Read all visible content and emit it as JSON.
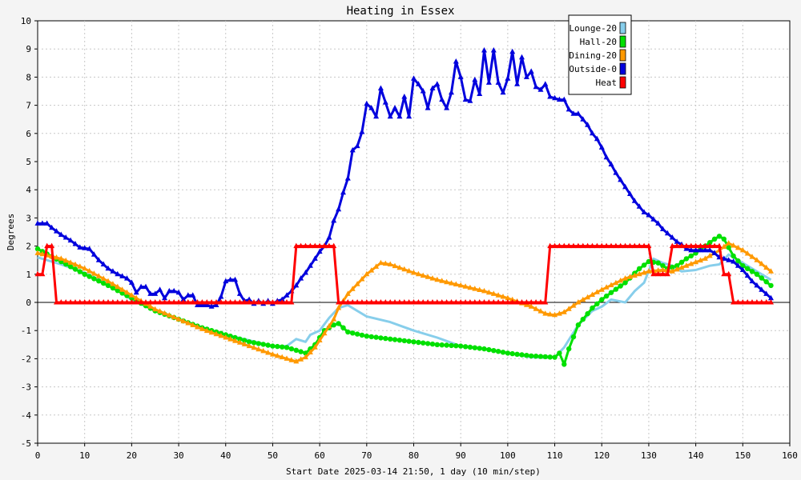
{
  "chart_data": {
    "type": "line",
    "title": "Heating in Essex",
    "xlabel": "Start Date 2025-03-14 21:50, 1 day (10 min/step)",
    "ylabel": "Degrees",
    "xlim": [
      0,
      160
    ],
    "ylim": [
      -5,
      10
    ],
    "xticks": [
      0,
      10,
      20,
      30,
      40,
      50,
      60,
      70,
      80,
      90,
      100,
      110,
      120,
      130,
      140,
      150,
      160
    ],
    "yticks": [
      -5,
      -4,
      -3,
      -2,
      -1,
      0,
      1,
      2,
      3,
      4,
      5,
      6,
      7,
      8,
      9,
      10
    ],
    "grid": true,
    "legend_position": "top-right",
    "background": "#f4f4f4",
    "plot_background": "#ffffff",
    "grid_color": "#c8c8c8",
    "series": [
      {
        "name": "Lounge-20",
        "color": "#87ceeb",
        "marker": "none",
        "points": [
          [
            0,
            1.6
          ],
          [
            5,
            1.35
          ],
          [
            10,
            1.05
          ],
          [
            15,
            0.65
          ],
          [
            20,
            0.1
          ],
          [
            25,
            -0.3
          ],
          [
            30,
            -0.6
          ],
          [
            35,
            -0.9
          ],
          [
            40,
            -1.15
          ],
          [
            45,
            -1.35
          ],
          [
            50,
            -1.55
          ],
          [
            53,
            -1.55
          ],
          [
            55,
            -1.3
          ],
          [
            57,
            -1.4
          ],
          [
            58,
            -1.15
          ],
          [
            60,
            -1.0
          ],
          [
            62,
            -0.55
          ],
          [
            64,
            -0.2
          ],
          [
            66,
            -0.1
          ],
          [
            68,
            -0.3
          ],
          [
            70,
            -0.5
          ],
          [
            75,
            -0.7
          ],
          [
            80,
            -1.0
          ],
          [
            85,
            -1.25
          ],
          [
            90,
            -1.55
          ],
          [
            95,
            -1.65
          ],
          [
            100,
            -1.8
          ],
          [
            105,
            -1.95
          ],
          [
            110,
            -1.95
          ],
          [
            112,
            -1.6
          ],
          [
            115,
            -0.8
          ],
          [
            118,
            -0.3
          ],
          [
            120,
            -0.15
          ],
          [
            122,
            0.1
          ],
          [
            125,
            0.0
          ],
          [
            127,
            0.4
          ],
          [
            129,
            0.7
          ],
          [
            131,
            1.55
          ],
          [
            133,
            1.4
          ],
          [
            135,
            1.3
          ],
          [
            137,
            1.1
          ],
          [
            140,
            1.15
          ],
          [
            143,
            1.3
          ],
          [
            145,
            1.35
          ],
          [
            147,
            1.7
          ],
          [
            150,
            1.4
          ],
          [
            153,
            1.1
          ],
          [
            155,
            0.9
          ],
          [
            156,
            0.8
          ]
        ]
      },
      {
        "name": "Hall-20",
        "color": "#00e000",
        "marker": "circle",
        "points": [
          [
            0,
            1.9
          ],
          [
            5,
            1.45
          ],
          [
            10,
            1.0
          ],
          [
            15,
            0.6
          ],
          [
            20,
            0.15
          ],
          [
            25,
            -0.3
          ],
          [
            30,
            -0.6
          ],
          [
            35,
            -0.9
          ],
          [
            40,
            -1.15
          ],
          [
            45,
            -1.4
          ],
          [
            50,
            -1.55
          ],
          [
            53,
            -1.6
          ],
          [
            55,
            -1.7
          ],
          [
            57,
            -1.8
          ],
          [
            59,
            -1.5
          ],
          [
            61,
            -1.0
          ],
          [
            63,
            -0.8
          ],
          [
            64,
            -0.75
          ],
          [
            66,
            -1.05
          ],
          [
            70,
            -1.2
          ],
          [
            75,
            -1.3
          ],
          [
            80,
            -1.4
          ],
          [
            85,
            -1.5
          ],
          [
            90,
            -1.55
          ],
          [
            95,
            -1.65
          ],
          [
            100,
            -1.8
          ],
          [
            105,
            -1.9
          ],
          [
            110,
            -1.95
          ],
          [
            111,
            -1.8
          ],
          [
            112,
            -2.2
          ],
          [
            113,
            -1.65
          ],
          [
            115,
            -0.8
          ],
          [
            118,
            -0.2
          ],
          [
            120,
            0.1
          ],
          [
            122,
            0.35
          ],
          [
            125,
            0.7
          ],
          [
            128,
            1.2
          ],
          [
            130,
            1.45
          ],
          [
            132,
            1.4
          ],
          [
            134,
            1.2
          ],
          [
            136,
            1.3
          ],
          [
            138,
            1.55
          ],
          [
            140,
            1.75
          ],
          [
            142,
            2.0
          ],
          [
            144,
            2.25
          ],
          [
            145,
            2.35
          ],
          [
            146,
            2.25
          ],
          [
            148,
            1.65
          ],
          [
            150,
            1.3
          ],
          [
            153,
            1.0
          ],
          [
            156,
            0.6
          ]
        ]
      },
      {
        "name": "Dining-20",
        "color": "#ff9900",
        "marker": "triangle",
        "points": [
          [
            0,
            1.75
          ],
          [
            5,
            1.55
          ],
          [
            10,
            1.2
          ],
          [
            15,
            0.75
          ],
          [
            20,
            0.25
          ],
          [
            25,
            -0.25
          ],
          [
            30,
            -0.6
          ],
          [
            35,
            -0.95
          ],
          [
            40,
            -1.25
          ],
          [
            45,
            -1.55
          ],
          [
            50,
            -1.85
          ],
          [
            53,
            -2.0
          ],
          [
            55,
            -2.1
          ],
          [
            57,
            -1.95
          ],
          [
            59,
            -1.6
          ],
          [
            61,
            -1.1
          ],
          [
            63,
            -0.6
          ],
          [
            64,
            -0.2
          ],
          [
            66,
            0.3
          ],
          [
            70,
            1.0
          ],
          [
            73,
            1.4
          ],
          [
            75,
            1.35
          ],
          [
            80,
            1.05
          ],
          [
            85,
            0.8
          ],
          [
            90,
            0.6
          ],
          [
            95,
            0.4
          ],
          [
            100,
            0.15
          ],
          [
            105,
            -0.15
          ],
          [
            108,
            -0.4
          ],
          [
            110,
            -0.45
          ],
          [
            112,
            -0.35
          ],
          [
            115,
            0.0
          ],
          [
            120,
            0.45
          ],
          [
            125,
            0.85
          ],
          [
            130,
            1.1
          ],
          [
            133,
            1.15
          ],
          [
            135,
            1.1
          ],
          [
            138,
            1.3
          ],
          [
            142,
            1.55
          ],
          [
            145,
            1.85
          ],
          [
            147,
            2.1
          ],
          [
            150,
            1.85
          ],
          [
            153,
            1.5
          ],
          [
            156,
            1.1
          ]
        ]
      },
      {
        "name": "Outside-0",
        "color": "#0000dd",
        "marker": "triangle",
        "points": [
          [
            0,
            2.8
          ],
          [
            2,
            2.8
          ],
          [
            3,
            2.65
          ],
          [
            5,
            2.4
          ],
          [
            7,
            2.2
          ],
          [
            9,
            1.95
          ],
          [
            11,
            1.9
          ],
          [
            13,
            1.5
          ],
          [
            15,
            1.2
          ],
          [
            17,
            1.0
          ],
          [
            19,
            0.85
          ],
          [
            20,
            0.7
          ],
          [
            21,
            0.35
          ],
          [
            22,
            0.55
          ],
          [
            23,
            0.55
          ],
          [
            24,
            0.3
          ],
          [
            25,
            0.3
          ],
          [
            26,
            0.45
          ],
          [
            27,
            0.15
          ],
          [
            28,
            0.4
          ],
          [
            29,
            0.4
          ],
          [
            30,
            0.35
          ],
          [
            31,
            0.1
          ],
          [
            32,
            0.25
          ],
          [
            33,
            0.25
          ],
          [
            34,
            -0.1
          ],
          [
            35,
            -0.1
          ],
          [
            36,
            -0.1
          ],
          [
            37,
            -0.15
          ],
          [
            38,
            -0.1
          ],
          [
            39,
            0.2
          ],
          [
            40,
            0.75
          ],
          [
            41,
            0.8
          ],
          [
            42,
            0.8
          ],
          [
            43,
            0.3
          ],
          [
            44,
            0.05
          ],
          [
            45,
            0.1
          ],
          [
            46,
            -0.05
          ],
          [
            47,
            0.05
          ],
          [
            48,
            -0.05
          ],
          [
            49,
            0.05
          ],
          [
            50,
            -0.05
          ],
          [
            51,
            0.05
          ],
          [
            52,
            0.1
          ],
          [
            53,
            0.25
          ],
          [
            54,
            0.4
          ],
          [
            55,
            0.6
          ],
          [
            56,
            0.85
          ],
          [
            57,
            1.05
          ],
          [
            58,
            1.3
          ],
          [
            59,
            1.55
          ],
          [
            60,
            1.8
          ],
          [
            61,
            2.0
          ],
          [
            62,
            2.3
          ],
          [
            63,
            2.9
          ],
          [
            64,
            3.3
          ],
          [
            65,
            3.9
          ],
          [
            66,
            4.4
          ],
          [
            67,
            5.4
          ],
          [
            68,
            5.55
          ],
          [
            69,
            6.05
          ],
          [
            70,
            7.05
          ],
          [
            71,
            6.9
          ],
          [
            72,
            6.6
          ],
          [
            73,
            7.6
          ],
          [
            74,
            7.1
          ],
          [
            75,
            6.6
          ],
          [
            76,
            6.9
          ],
          [
            77,
            6.6
          ],
          [
            78,
            7.3
          ],
          [
            79,
            6.6
          ],
          [
            80,
            7.95
          ],
          [
            81,
            7.75
          ],
          [
            82,
            7.5
          ],
          [
            83,
            6.9
          ],
          [
            84,
            7.6
          ],
          [
            85,
            7.75
          ],
          [
            86,
            7.2
          ],
          [
            87,
            6.9
          ],
          [
            88,
            7.45
          ],
          [
            89,
            8.55
          ],
          [
            90,
            8.0
          ],
          [
            91,
            7.2
          ],
          [
            92,
            7.15
          ],
          [
            93,
            7.9
          ],
          [
            94,
            7.4
          ],
          [
            95,
            8.95
          ],
          [
            96,
            7.8
          ],
          [
            97,
            8.95
          ],
          [
            98,
            7.8
          ],
          [
            99,
            7.45
          ],
          [
            100,
            7.95
          ],
          [
            101,
            8.9
          ],
          [
            102,
            7.75
          ],
          [
            103,
            8.7
          ],
          [
            104,
            8.0
          ],
          [
            105,
            8.2
          ],
          [
            106,
            7.65
          ],
          [
            107,
            7.55
          ],
          [
            108,
            7.75
          ],
          [
            109,
            7.3
          ],
          [
            110,
            7.25
          ],
          [
            111,
            7.2
          ],
          [
            112,
            7.2
          ],
          [
            113,
            6.85
          ],
          [
            114,
            6.7
          ],
          [
            115,
            6.7
          ],
          [
            116,
            6.5
          ],
          [
            117,
            6.3
          ],
          [
            118,
            6.0
          ],
          [
            119,
            5.8
          ],
          [
            120,
            5.5
          ],
          [
            121,
            5.15
          ],
          [
            122,
            4.9
          ],
          [
            123,
            4.6
          ],
          [
            124,
            4.35
          ],
          [
            125,
            4.1
          ],
          [
            126,
            3.85
          ],
          [
            127,
            3.6
          ],
          [
            128,
            3.4
          ],
          [
            129,
            3.2
          ],
          [
            130,
            3.1
          ],
          [
            131,
            2.95
          ],
          [
            132,
            2.8
          ],
          [
            133,
            2.6
          ],
          [
            134,
            2.45
          ],
          [
            135,
            2.3
          ],
          [
            136,
            2.15
          ],
          [
            137,
            2.05
          ],
          [
            138,
            1.9
          ],
          [
            139,
            1.85
          ],
          [
            140,
            1.85
          ],
          [
            141,
            1.85
          ],
          [
            142,
            1.85
          ],
          [
            143,
            1.85
          ],
          [
            144,
            1.75
          ],
          [
            145,
            1.6
          ],
          [
            146,
            1.55
          ],
          [
            147,
            1.5
          ],
          [
            148,
            1.45
          ],
          [
            149,
            1.3
          ],
          [
            150,
            1.15
          ],
          [
            151,
            0.95
          ],
          [
            152,
            0.75
          ],
          [
            153,
            0.6
          ],
          [
            154,
            0.45
          ],
          [
            155,
            0.3
          ],
          [
            156,
            0.15
          ]
        ]
      },
      {
        "name": "Heat",
        "color": "#ff0000",
        "marker": "triangle",
        "points": [
          [
            0,
            1
          ],
          [
            1,
            1
          ],
          [
            2,
            2
          ],
          [
            3,
            2
          ],
          [
            4,
            0
          ],
          [
            54,
            0
          ],
          [
            55,
            2
          ],
          [
            63,
            2
          ],
          [
            64,
            0
          ],
          [
            108,
            0
          ],
          [
            109,
            2
          ],
          [
            130,
            2
          ],
          [
            131,
            1
          ],
          [
            134,
            1
          ],
          [
            135,
            2
          ],
          [
            145,
            2
          ],
          [
            146,
            1
          ],
          [
            147,
            1
          ],
          [
            148,
            0
          ],
          [
            156,
            0
          ]
        ]
      }
    ]
  }
}
